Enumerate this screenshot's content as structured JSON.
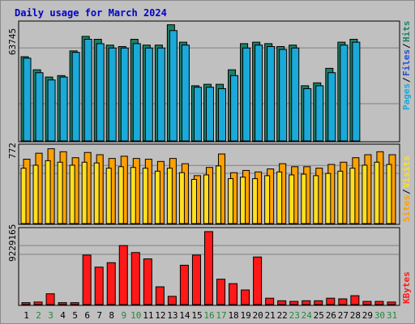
{
  "chart_data": {
    "type": "bar",
    "title": "Daily usage for March 2024",
    "colors": {
      "title": "#0000c8",
      "pages": "#1e7f67",
      "files": "#1f4fd6",
      "hits": "#1aa9d8",
      "visits": "#ffa000",
      "sites": "#ffe020",
      "kbytes": "#ff1818",
      "weekend_day": "#1f8a3a",
      "weekday": "#000000"
    },
    "categories": [
      "1",
      "2",
      "3",
      "4",
      "5",
      "6",
      "7",
      "8",
      "9",
      "10",
      "11",
      "12",
      "13",
      "14",
      "15",
      "16",
      "17",
      "18",
      "19",
      "20",
      "21",
      "22",
      "23",
      "24",
      "25",
      "26",
      "27",
      "28",
      "29",
      "30",
      "31"
    ],
    "weekend_days": [
      "2",
      "3",
      "9",
      "10",
      "16",
      "17",
      "23",
      "24",
      "30",
      "31"
    ],
    "panels": [
      {
        "id": "pages-files-hits",
        "ymax_label": "63745",
        "ylim": [
          0,
          82000
        ],
        "legend": [
          "Pages",
          "Files",
          "Hits"
        ],
        "series": [
          {
            "name": "Pages",
            "values": [
              58000,
              49000,
              44000,
              45000,
              62000,
              72000,
              70000,
              66000,
              65000,
              70000,
              66000,
              66000,
              80000,
              68000,
              38000,
              39000,
              39000,
              49000,
              67000,
              68000,
              67000,
              65000,
              66000,
              38000,
              40000,
              50000,
              68000,
              70000,
              0,
              0,
              0
            ]
          },
          {
            "name": "Files",
            "values": [
              58000,
              49000,
              44000,
              45000,
              62000,
              72000,
              70000,
              66000,
              65000,
              70000,
              66000,
              66000,
              80000,
              68000,
              38000,
              39000,
              39000,
              49000,
              67000,
              68000,
              67000,
              65000,
              66000,
              38000,
              40000,
              50000,
              68000,
              70000,
              0,
              0,
              0
            ]
          },
          {
            "name": "Hits",
            "values": [
              57000,
              47000,
              42000,
              44000,
              61000,
              70000,
              67000,
              64000,
              64000,
              67000,
              64000,
              64000,
              76000,
              66000,
              37000,
              37000,
              36000,
              45000,
              64000,
              66000,
              65000,
              63000,
              64000,
              36000,
              38000,
              47000,
              66000,
              68000,
              0,
              0,
              0
            ]
          }
        ]
      },
      {
        "id": "visits-sites",
        "ymax_label": "772",
        "ylim": [
          0,
          1050
        ],
        "legend": [
          "Sites",
          "Visits"
        ],
        "series": [
          {
            "name": "Visits",
            "values": [
              860,
              940,
              1000,
              960,
              880,
              950,
              920,
              870,
              900,
              870,
              860,
              830,
              870,
              800,
              640,
              750,
              930,
              680,
              710,
              690,
              730,
              800,
              760,
              760,
              740,
              790,
              820,
              880,
              920,
              960,
              920
            ]
          },
          {
            "name": "Sites",
            "values": [
              740,
              780,
              840,
              820,
              780,
              820,
              810,
              740,
              760,
              750,
              740,
              700,
              740,
              680,
              590,
              650,
              770,
              600,
              620,
              600,
              640,
              690,
              650,
              660,
              640,
              670,
              700,
              740,
              780,
              820,
              790
            ]
          }
        ]
      },
      {
        "id": "kbytes",
        "ymax_label": "9229165",
        "ylim": [
          0,
          12000000
        ],
        "legend": [
          "KBytes"
        ],
        "series": [
          {
            "name": "KBytes",
            "values": [
              300000,
              400000,
              1700000,
              300000,
              300000,
              7800000,
              5900000,
              6600000,
              9300000,
              8200000,
              7200000,
              2800000,
              1300000,
              6200000,
              7800000,
              11500000,
              4000000,
              3300000,
              2300000,
              7500000,
              1000000,
              600000,
              500000,
              600000,
              600000,
              1000000,
              900000,
              1400000,
              500000,
              500000,
              400000
            ]
          }
        ]
      }
    ]
  }
}
